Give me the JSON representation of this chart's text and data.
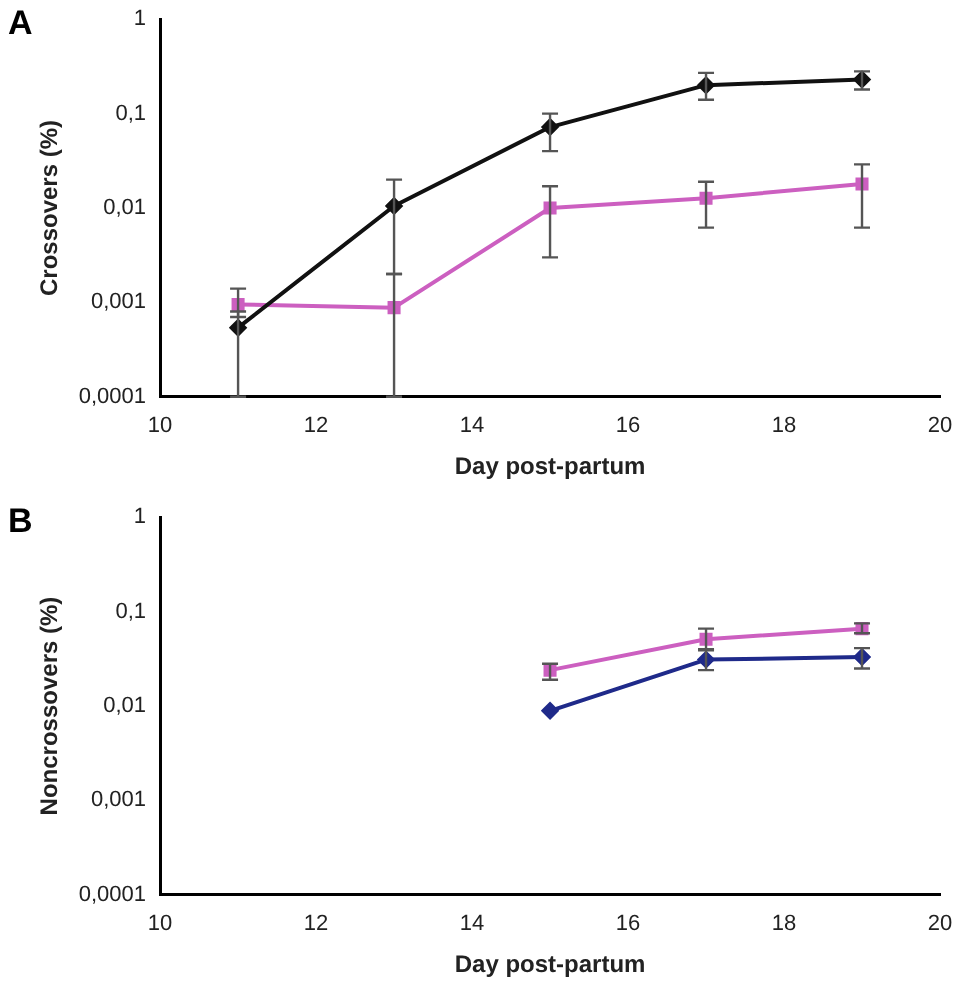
{
  "chart_data": [
    {
      "type": "line",
      "title": "A",
      "xlabel": "Day post-partum",
      "ylabel": "Crossovers (%)",
      "log": "y",
      "grid": false,
      "legend": false,
      "xlim": [
        10,
        20
      ],
      "xticks": [
        10,
        12,
        14,
        16,
        18,
        20
      ],
      "ylim": [
        0.0001,
        1
      ],
      "yticks": [
        {
          "value": 0.0001,
          "label": "0,0001"
        },
        {
          "value": 0.001,
          "label": "0,001"
        },
        {
          "value": 0.01,
          "label": "0,01"
        },
        {
          "value": 0.1,
          "label": "0,1"
        },
        {
          "value": 1,
          "label": "1"
        }
      ],
      "x": [
        11,
        13,
        15,
        17,
        19
      ],
      "series": [
        {
          "color": "#111111",
          "marker": "diamond",
          "values": [
            0.00054,
            0.0105,
            0.072,
            0.2,
            0.23
          ],
          "errors": [
            [
              0.0001,
              0.0008
            ],
            [
              0.002,
              0.02
            ],
            [
              0.04,
              0.1
            ],
            [
              0.14,
              0.27
            ],
            [
              0.18,
              0.28
            ]
          ]
        },
        {
          "color": "#cc5fc0",
          "marker": "square",
          "values": [
            0.00095,
            0.00088,
            0.01,
            0.0127,
            0.018
          ],
          "errors": [
            [
              0.0007,
              0.0014
            ],
            [
              0.0001,
              0.002
            ],
            [
              0.003,
              0.017
            ],
            [
              0.0062,
              0.019
            ],
            [
              0.0062,
              0.029
            ]
          ]
        }
      ]
    },
    {
      "type": "line",
      "title": "B",
      "xlabel": "Day post-partum",
      "ylabel": "Noncrossovers (%)",
      "log": "y",
      "grid": false,
      "legend": false,
      "xlim": [
        10,
        20
      ],
      "xticks": [
        10,
        12,
        14,
        16,
        18,
        20
      ],
      "ylim": [
        0.0001,
        1
      ],
      "yticks": [
        {
          "value": 0.0001,
          "label": "0,0001"
        },
        {
          "value": 0.001,
          "label": "0,001"
        },
        {
          "value": 0.01,
          "label": "0,01"
        },
        {
          "value": 0.1,
          "label": "0,1"
        },
        {
          "value": 1,
          "label": "1"
        }
      ],
      "x": [
        15,
        17,
        19
      ],
      "series": [
        {
          "color": "#cc5fc0",
          "marker": "square",
          "values": [
            0.024,
            0.051,
            0.066
          ],
          "errors": [
            [
              0.019,
              0.028
            ],
            [
              0.04,
              0.066
            ],
            [
              0.059,
              0.075
            ]
          ]
        },
        {
          "color": "#1f2a8a",
          "marker": "diamond",
          "values": [
            0.0089,
            0.031,
            0.033
          ],
          "errors": [
            null,
            [
              0.024,
              0.039
            ],
            [
              0.025,
              0.041
            ]
          ]
        }
      ]
    }
  ]
}
